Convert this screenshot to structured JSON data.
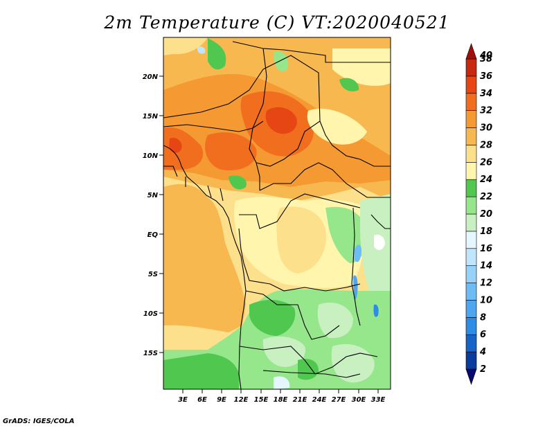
{
  "title": "2m Temperature (C) VT:2020040521",
  "footer": "GrADS: IGES/COLA",
  "map": {
    "lat_labels": [
      "20N",
      "15N",
      "10N",
      "5N",
      "EQ",
      "5S",
      "10S",
      "15S"
    ],
    "lon_labels": [
      "3E",
      "6E",
      "9E",
      "12E",
      "15E",
      "18E",
      "21E",
      "24E",
      "27E",
      "30E",
      "33E"
    ],
    "lon_range": [
      0,
      35
    ],
    "lat_range": [
      -20,
      25
    ]
  },
  "colorbar": {
    "levels": [
      "2",
      "4",
      "6",
      "8",
      "10",
      "12",
      "14",
      "16",
      "18",
      "20",
      "22",
      "24",
      "26",
      "28",
      "30",
      "32",
      "34",
      "36",
      "38",
      "40"
    ],
    "colors": [
      "#0a0a6e",
      "#0a3c9e",
      "#1664c8",
      "#2c8ce6",
      "#4ea6f0",
      "#6cbcf5",
      "#96d2fa",
      "#bfe6fc",
      "#e4f6fe",
      "#c8f0c0",
      "#96e68c",
      "#50c850",
      "#fff5ac",
      "#fde08c",
      "#f8b850",
      "#f59a32",
      "#f06e1e",
      "#e64614",
      "#c82810",
      "#a01008"
    ]
  }
}
